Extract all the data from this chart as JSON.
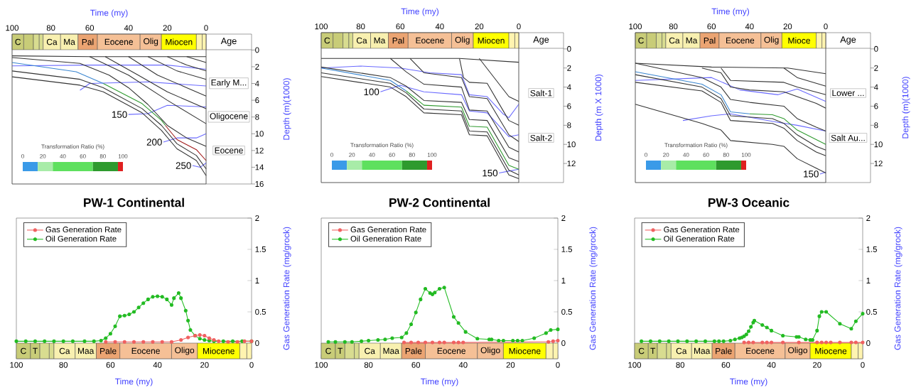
{
  "chart_data": [
    {
      "type": "line",
      "xlabel": "Time (my)",
      "ylabel": "Depth (m)(1000)",
      "xlim": [
        100,
        0
      ],
      "xticks": [
        100,
        80,
        60,
        40,
        20,
        0
      ],
      "ylim": [
        16,
        -1.9
      ],
      "yticks": [
        0,
        2,
        4,
        6,
        8,
        10,
        12,
        14,
        16
      ],
      "clabel": "Transformation Ratio (%)",
      "clim": [
        0,
        100
      ],
      "cticks": [
        0,
        20,
        40,
        60,
        80,
        100
      ],
      "bands": [
        {
          "axis": "x",
          "from": 100,
          "to": 94,
          "label": "C",
          "color": "#c8cc78"
        },
        {
          "axis": "x",
          "from": 94,
          "to": 89,
          "color": "#c8cc78"
        },
        {
          "axis": "x",
          "from": 89,
          "to": 86,
          "color": "#d8dc90"
        },
        {
          "axis": "x",
          "from": 86,
          "to": 84,
          "color": "#d8dc90"
        },
        {
          "axis": "x",
          "from": 84,
          "to": 75,
          "label": "Ca",
          "color": "#f8f0b0"
        },
        {
          "axis": "x",
          "from": 75,
          "to": 66,
          "label": "Ma",
          "color": "#f8f0b0"
        },
        {
          "axis": "x",
          "from": 66,
          "to": 56,
          "label": "Pal",
          "color": "#eba472"
        },
        {
          "axis": "x",
          "from": 56,
          "to": 34,
          "label": "Eocene",
          "color": "#f5c096"
        },
        {
          "axis": "x",
          "from": 34,
          "to": 23,
          "label": "Olig",
          "color": "#f5c096"
        },
        {
          "axis": "x",
          "from": 23,
          "to": 5,
          "label": "Miocen",
          "color": "#ffff00"
        },
        {
          "axis": "x",
          "from": 5,
          "to": 2,
          "color": "#fff4b0"
        },
        {
          "axis": "x",
          "from": 2,
          "to": 0,
          "color": "#fff4b0"
        }
      ],
      "annotations": [
        "Age",
        "Early M...",
        "Oligocene",
        "Eocene",
        {
          "text": "150",
          "x": 40,
          "y": 7.7
        },
        {
          "text": "200",
          "x": 22,
          "y": 11.0
        },
        {
          "text": "250",
          "x": 7,
          "y": 13.8
        }
      ],
      "series": [
        {
          "color": "#333333",
          "x": [
            100,
            60,
            0
          ],
          "values": [
            0.7,
            0.8,
            0.8
          ]
        },
        {
          "color": "#333333",
          "x": [
            60,
            40,
            20,
            0
          ],
          "values": [
            0.8,
            3.0,
            6.0,
            8.8
          ]
        },
        {
          "color": "#333333",
          "x": [
            52,
            35,
            20,
            0
          ],
          "values": [
            0.8,
            3.0,
            5.0,
            7.0
          ]
        },
        {
          "color": "#333333",
          "x": [
            40,
            25,
            10,
            0
          ],
          "values": [
            0.8,
            3.0,
            4.5,
            5.5
          ]
        },
        {
          "color": "#333333",
          "x": [
            30,
            15,
            0
          ],
          "values": [
            0.8,
            2.5,
            3.5
          ]
        },
        {
          "color": "#333333",
          "x": [
            20,
            10,
            0
          ],
          "values": [
            0.8,
            1.8,
            2.5
          ]
        },
        {
          "color": "#333333",
          "x": [
            10,
            0
          ],
          "values": [
            0.8,
            1.5
          ]
        },
        {
          "color": "#333333",
          "x": [
            100,
            65,
            50,
            40,
            30,
            20,
            10,
            0
          ],
          "values": [
            0.9,
            1.6,
            3.0,
            4.5,
            6.5,
            9.0,
            10.5,
            11.5
          ]
        },
        {
          "color": "#333333",
          "x": [
            100,
            65,
            53,
            33,
            23,
            15,
            5,
            0
          ],
          "values": [
            2.5,
            3.5,
            4.5,
            7.0,
            9.0,
            11.2,
            12.6,
            14.2
          ]
        },
        {
          "color": "#333333",
          "x": [
            100,
            65,
            53,
            33,
            23,
            15,
            5,
            0
          ],
          "values": [
            3.2,
            4.2,
            5.0,
            7.5,
            9.6,
            11.8,
            13.2,
            15.0
          ]
        },
        {
          "color": "#3a86d0",
          "x": [
            100,
            67,
            53
          ],
          "values": [
            1.5,
            2.6,
            4.0
          ]
        },
        {
          "color": "#2e9a2e",
          "x": [
            53,
            33,
            23,
            21
          ],
          "values": [
            4.0,
            6.4,
            8.4,
            9.0
          ]
        },
        {
          "color": "#a01818",
          "x": [
            21,
            15,
            5,
            0
          ],
          "values": [
            9.0,
            10.7,
            11.9,
            13.2
          ]
        },
        {
          "color": "#6a6aff",
          "x": [
            100,
            60,
            20,
            0
          ],
          "values": [
            1.9,
            1.8,
            1.8,
            2.3
          ]
        },
        {
          "color": "#6a6aff",
          "x": [
            65,
            60,
            30,
            0
          ],
          "values": [
            4.8,
            4.0,
            3.8,
            4.3
          ]
        },
        {
          "color": "#6a6aff",
          "x": [
            40,
            30,
            20,
            0
          ],
          "values": [
            7.7,
            7.6,
            6.6,
            6.8
          ]
        },
        {
          "color": "#6a6aff",
          "x": [
            22,
            15,
            5,
            0
          ],
          "values": [
            11.0,
            10.5,
            10.5,
            10.0
          ]
        },
        {
          "color": "#6a6aff",
          "x": [
            7,
            3,
            0
          ],
          "values": [
            13.8,
            14.0,
            13.5
          ]
        }
      ]
    },
    {
      "type": "line",
      "xlabel": "Time (my)",
      "ylabel": "Depth (m X 1000)",
      "xlim": [
        100,
        0
      ],
      "xticks": [
        100,
        80,
        60,
        40,
        20,
        0
      ],
      "ylim": [
        14,
        -1.7
      ],
      "yticks": [
        0,
        2,
        4,
        6,
        8,
        10,
        12
      ],
      "clabel": "Transformation Ratio (%)",
      "clim": [
        0,
        100
      ],
      "cticks": [
        0,
        20,
        40,
        60,
        80,
        100
      ],
      "bands": [
        {
          "axis": "x",
          "from": 100,
          "to": 94,
          "label": "C",
          "color": "#c8cc78"
        },
        {
          "axis": "x",
          "from": 94,
          "to": 89,
          "color": "#c8cc78"
        },
        {
          "axis": "x",
          "from": 89,
          "to": 86,
          "color": "#d8dc90"
        },
        {
          "axis": "x",
          "from": 86,
          "to": 84,
          "color": "#d8dc90"
        },
        {
          "axis": "x",
          "from": 84,
          "to": 75,
          "label": "Ca",
          "color": "#f8f0b0"
        },
        {
          "axis": "x",
          "from": 75,
          "to": 66,
          "label": "Ma",
          "color": "#f8f0b0"
        },
        {
          "axis": "x",
          "from": 66,
          "to": 56,
          "label": "Pal",
          "color": "#eba472"
        },
        {
          "axis": "x",
          "from": 56,
          "to": 34,
          "label": "Eocene",
          "color": "#f5c096"
        },
        {
          "axis": "x",
          "from": 34,
          "to": 23,
          "label": "Olig",
          "color": "#f5c096"
        },
        {
          "axis": "x",
          "from": 23,
          "to": 5,
          "label": "Miocen",
          "color": "#ffff00"
        },
        {
          "axis": "x",
          "from": 5,
          "to": 2,
          "color": "#fff4b0"
        },
        {
          "axis": "x",
          "from": 2,
          "to": 0,
          "color": "#fff4b0"
        }
      ],
      "annotations": [
        "Age",
        "Salt-1",
        "Salt-2",
        {
          "text": "100",
          "x": 70,
          "y": 4.5
        },
        {
          "text": "150",
          "x": 10,
          "y": 13.0
        }
      ],
      "series": [
        {
          "color": "#333333",
          "x": [
            100,
            30,
            0
          ],
          "values": [
            1.0,
            1.0,
            1.4
          ]
        },
        {
          "color": "#333333",
          "x": [
            100,
            65,
            57,
            48,
            29,
            25,
            16,
            5,
            0
          ],
          "values": [
            1.9,
            3.0,
            3.9,
            5.4,
            5.6,
            7.4,
            7.5,
            11.4,
            11.8
          ]
        },
        {
          "color": "#333333",
          "x": [
            100,
            65,
            57,
            48,
            29,
            25,
            16,
            5,
            0
          ],
          "values": [
            2.5,
            3.6,
            4.6,
            6.3,
            6.5,
            8.6,
            8.7,
            12.7,
            13.2
          ]
        },
        {
          "color": "#333333",
          "x": [
            100,
            65,
            57,
            48,
            29,
            25,
            16,
            5,
            0
          ],
          "values": [
            2.9,
            4.0,
            5.0,
            6.7,
            6.9,
            9.0,
            9.1,
            13.2,
            13.6
          ]
        },
        {
          "color": "#333333",
          "x": [
            65,
            57,
            48,
            29,
            25,
            16,
            5,
            0
          ],
          "values": [
            1.0,
            2.4,
            3.7,
            4.0,
            6.4,
            6.5,
            10.3,
            10.8
          ]
        },
        {
          "color": "#333333",
          "x": [
            55,
            48,
            29,
            25,
            16,
            5,
            0
          ],
          "values": [
            1.0,
            2.5,
            3.0,
            5.0,
            5.2,
            9.0,
            9.7
          ]
        },
        {
          "color": "#333333",
          "x": [
            30,
            28,
            25,
            16,
            5,
            0
          ],
          "values": [
            1.0,
            3.0,
            3.5,
            3.6,
            7.5,
            8.0
          ]
        },
        {
          "color": "#333333",
          "x": [
            20,
            5,
            0
          ],
          "values": [
            1.0,
            5.0,
            5.5
          ]
        },
        {
          "color": "#3a86d0",
          "x": [
            100,
            65,
            57
          ],
          "values": [
            2.0,
            3.3,
            4.4
          ]
        },
        {
          "color": "#2e9a2e",
          "x": [
            57,
            48,
            29,
            25,
            16,
            5,
            0
          ],
          "values": [
            4.4,
            5.9,
            6.1,
            8.1,
            8.2,
            12.2,
            12.6
          ]
        },
        {
          "color": "#6a6aff",
          "x": [
            100,
            80,
            60,
            45,
            29,
            25,
            16,
            8,
            5,
            0
          ],
          "values": [
            2.0,
            1.8,
            2.0,
            2.5,
            2.7,
            4.8,
            5.0,
            6.8,
            7.2,
            5.8
          ]
        },
        {
          "color": "#6a6aff",
          "x": [
            70,
            60,
            48,
            29,
            25,
            16,
            5,
            0
          ],
          "values": [
            4.5,
            3.8,
            4.5,
            4.8,
            6.5,
            6.7,
            9.2,
            9.0
          ]
        },
        {
          "color": "#6a6aff",
          "x": [
            10,
            5,
            0
          ],
          "values": [
            13.0,
            12.8,
            12.6
          ]
        }
      ]
    },
    {
      "type": "line",
      "xlabel": "Time (my)",
      "ylabel": "Depth (m)(1000)",
      "xlim": [
        100,
        0
      ],
      "xticks": [
        100,
        80,
        60,
        40,
        20,
        0
      ],
      "ylim": [
        14,
        -1.7
      ],
      "yticks": [
        0,
        2,
        4,
        6,
        8,
        10,
        12
      ],
      "clabel": "Transformation Ratio (%)",
      "clim": [
        0,
        100
      ],
      "cticks": [
        0,
        20,
        40,
        60,
        80,
        100
      ],
      "bands": [
        {
          "axis": "x",
          "from": 100,
          "to": 94,
          "label": "C",
          "color": "#c8cc78"
        },
        {
          "axis": "x",
          "from": 94,
          "to": 89,
          "color": "#c8cc78"
        },
        {
          "axis": "x",
          "from": 89,
          "to": 86,
          "color": "#d8dc90"
        },
        {
          "axis": "x",
          "from": 86,
          "to": 84,
          "color": "#d8dc90"
        },
        {
          "axis": "x",
          "from": 84,
          "to": 75,
          "label": "Ca",
          "color": "#f8f0b0"
        },
        {
          "axis": "x",
          "from": 75,
          "to": 66,
          "label": "Ma",
          "color": "#f8f0b0"
        },
        {
          "axis": "x",
          "from": 66,
          "to": 56,
          "label": "Pal",
          "color": "#eba472"
        },
        {
          "axis": "x",
          "from": 56,
          "to": 34,
          "label": "Eocene",
          "color": "#f5c096"
        },
        {
          "axis": "x",
          "from": 34,
          "to": 23,
          "label": "Olig",
          "color": "#f5c096"
        },
        {
          "axis": "x",
          "from": 23,
          "to": 5,
          "label": "Mioce",
          "color": "#ffff00"
        },
        {
          "axis": "x",
          "from": 5,
          "to": 2,
          "color": "#fff4b0"
        },
        {
          "axis": "x",
          "from": 2,
          "to": 0,
          "color": "#fff4b0"
        }
      ],
      "annotations": [
        "Age",
        "Lower ...",
        "Salt Au...",
        {
          "text": "150",
          "x": 3,
          "y": 13.1
        }
      ],
      "series": [
        {
          "color": "#333333",
          "x": [
            100,
            60,
            20,
            0
          ],
          "values": [
            1.5,
            1.9,
            2.0,
            2.6
          ]
        },
        {
          "color": "#333333",
          "x": [
            100,
            65,
            55,
            50,
            40,
            22,
            15,
            5,
            0
          ],
          "values": [
            1.5,
            3.0,
            4.0,
            5.3,
            5.6,
            6.0,
            7.3,
            8.2,
            8.6
          ]
        },
        {
          "color": "#333333",
          "x": [
            100,
            65,
            55,
            50,
            28,
            22,
            15,
            5,
            0
          ],
          "values": [
            2.7,
            4.0,
            5.2,
            7.0,
            7.3,
            7.8,
            9.0,
            10.2,
            10.6
          ]
        },
        {
          "color": "#333333",
          "x": [
            100,
            65,
            55,
            50,
            28,
            22,
            15,
            5,
            0
          ],
          "values": [
            3.5,
            4.4,
            5.6,
            7.5,
            7.8,
            8.3,
            9.6,
            10.8,
            11.2
          ]
        },
        {
          "color": "#333333",
          "x": [
            100,
            65,
            55,
            50,
            28,
            22,
            15,
            5,
            0
          ],
          "values": [
            5.8,
            7.8,
            8.5,
            9.6,
            10.0,
            10.2,
            11.5,
            12.5,
            13.0
          ]
        },
        {
          "color": "#333333",
          "x": [
            65,
            55,
            50,
            40,
            22,
            15,
            5,
            0
          ],
          "values": [
            2.0,
            2.5,
            4.0,
            4.3,
            4.5,
            5.0,
            5.7,
            6.2
          ]
        },
        {
          "color": "#333333",
          "x": [
            55,
            50,
            22,
            15,
            0
          ],
          "values": [
            2.0,
            3.3,
            3.5,
            4.0,
            4.8
          ]
        },
        {
          "color": "#333333",
          "x": [
            22,
            15,
            0
          ],
          "values": [
            2.0,
            3.0,
            3.9
          ]
        },
        {
          "color": "#3a86d0",
          "x": [
            100,
            65,
            55,
            50,
            40
          ],
          "values": [
            2.4,
            3.7,
            4.8,
            6.6,
            6.8
          ]
        },
        {
          "color": "#2e9a2e",
          "x": [
            40,
            28,
            22,
            15,
            5,
            0
          ],
          "values": [
            6.8,
            6.9,
            7.3,
            8.5,
            9.5,
            10.0
          ]
        },
        {
          "color": "#6a6aff",
          "x": [
            100,
            60,
            45,
            25,
            15,
            0
          ],
          "values": [
            3.3,
            3.0,
            4.3,
            4.8,
            4.2,
            5.5
          ]
        },
        {
          "color": "#6a6aff",
          "x": [
            75,
            60,
            50,
            25,
            15,
            0
          ],
          "values": [
            7.5,
            7.0,
            6.8,
            7.7,
            8.0,
            8.6
          ]
        },
        {
          "color": "#6a6aff",
          "x": [
            3,
            0
          ],
          "values": [
            13.1,
            12.9
          ]
        }
      ]
    },
    {
      "type": "line",
      "title": "PW-1 Continental",
      "xlabel": "Time (my)",
      "ylabel": "Gas Generation Rate (mg/grock)",
      "xlim": [
        100,
        0
      ],
      "xticks": [
        100,
        80,
        60,
        40,
        20,
        0
      ],
      "ylim": [
        -0.25,
        2
      ],
      "yticks": [
        0,
        0.5,
        1,
        1.5,
        2
      ],
      "legend": "top left",
      "marker": "circle",
      "bands": [
        {
          "axis": "x",
          "from": 100,
          "to": 94,
          "label": "C",
          "color": "#c8cc78"
        },
        {
          "axis": "x",
          "from": 94,
          "to": 90,
          "label": "T",
          "color": "#c8cc78"
        },
        {
          "axis": "x",
          "from": 90,
          "to": 86,
          "color": "#d8dc90"
        },
        {
          "axis": "x",
          "from": 86,
          "to": 84,
          "color": "#d8dc90"
        },
        {
          "axis": "x",
          "from": 84,
          "to": 75,
          "label": "Ca",
          "color": "#f8f0b0"
        },
        {
          "axis": "x",
          "from": 75,
          "to": 66,
          "label": "Maa",
          "color": "#f8f0b0"
        },
        {
          "axis": "x",
          "from": 66,
          "to": 56,
          "label": "Pale",
          "color": "#eba472"
        },
        {
          "axis": "x",
          "from": 56,
          "to": 34,
          "label": "Eocene",
          "color": "#f5c096"
        },
        {
          "axis": "x",
          "from": 34,
          "to": 23,
          "label": "Oligo",
          "color": "#f5c096"
        },
        {
          "axis": "x",
          "from": 23,
          "to": 5,
          "label": "Miocene",
          "color": "#ffff00"
        },
        {
          "axis": "x",
          "from": 5,
          "to": 2,
          "color": "#fff4b0"
        },
        {
          "axis": "x",
          "from": 2,
          "to": 0,
          "color": "#fff4b0"
        }
      ],
      "series": [
        {
          "name": "Gas Generation Rate",
          "color": "#f06060",
          "x": [
            62,
            58,
            54,
            50,
            46,
            42,
            38,
            34,
            30,
            27,
            24,
            22,
            20,
            18,
            16,
            14,
            10,
            6,
            3,
            0
          ],
          "values": [
            0.02,
            0.02,
            0.02,
            0.02,
            0.02,
            0.02,
            0.02,
            0.02,
            0.05,
            0.09,
            0.12,
            0.13,
            0.12,
            0.08,
            0.05,
            0.03,
            0.02,
            0.02,
            0.03,
            0.03
          ]
        },
        {
          "name": "Oil Generation Rate",
          "color": "#22bb22",
          "x": [
            100,
            96,
            92,
            88,
            84,
            80,
            76,
            71,
            67,
            64,
            62,
            60,
            58,
            56,
            54,
            52,
            50,
            48,
            46,
            44,
            42,
            40,
            38,
            36,
            34,
            33,
            31,
            30,
            28,
            27,
            26,
            24,
            22,
            20,
            18,
            16,
            12,
            8,
            4,
            0
          ],
          "values": [
            0.03,
            0.03,
            0.03,
            0.03,
            0.03,
            0.03,
            0.03,
            0.03,
            0.03,
            0.04,
            0.08,
            0.15,
            0.27,
            0.43,
            0.44,
            0.46,
            0.5,
            0.57,
            0.64,
            0.7,
            0.74,
            0.75,
            0.74,
            0.7,
            0.61,
            0.72,
            0.8,
            0.72,
            0.52,
            0.36,
            0.21,
            0.12,
            0.07,
            0.05,
            0.04,
            0.03,
            0.03,
            0.03,
            0.03,
            0.03
          ]
        }
      ]
    },
    {
      "type": "line",
      "title": "PW-2 Continental",
      "xlabel": "Time (my)",
      "ylabel": "Gas Generation Rate (mg/grock)",
      "xlim": [
        100,
        0
      ],
      "xticks": [
        100,
        80,
        60,
        40,
        20,
        0
      ],
      "ylim": [
        -0.25,
        2
      ],
      "yticks": [
        0,
        0.5,
        1,
        1.5,
        2
      ],
      "legend": "top left",
      "marker": "circle",
      "bands": [
        {
          "axis": "x",
          "from": 100,
          "to": 94,
          "label": "C",
          "color": "#c8cc78"
        },
        {
          "axis": "x",
          "from": 94,
          "to": 90,
          "label": "T",
          "color": "#c8cc78"
        },
        {
          "axis": "x",
          "from": 90,
          "to": 86,
          "color": "#d8dc90"
        },
        {
          "axis": "x",
          "from": 86,
          "to": 84,
          "color": "#d8dc90"
        },
        {
          "axis": "x",
          "from": 84,
          "to": 75,
          "label": "Ca",
          "color": "#f8f0b0"
        },
        {
          "axis": "x",
          "from": 75,
          "to": 66,
          "label": "Maa",
          "color": "#f8f0b0"
        },
        {
          "axis": "x",
          "from": 66,
          "to": 56,
          "label": "Pale",
          "color": "#eba472"
        },
        {
          "axis": "x",
          "from": 56,
          "to": 34,
          "label": "Eocene",
          "color": "#f5c096"
        },
        {
          "axis": "x",
          "from": 34,
          "to": 23,
          "label": "Oligo",
          "color": "#f5c096"
        },
        {
          "axis": "x",
          "from": 23,
          "to": 5,
          "label": "Miocene",
          "color": "#ffff00"
        },
        {
          "axis": "x",
          "from": 5,
          "to": 2,
          "color": "#fff4b0"
        },
        {
          "axis": "x",
          "from": 2,
          "to": 0,
          "color": "#fff4b0"
        }
      ],
      "series": [
        {
          "name": "Gas Generation Rate",
          "color": "#f06060",
          "x": [
            65,
            62,
            59,
            56,
            53,
            50,
            48,
            44,
            42,
            40,
            4,
            2,
            0
          ],
          "values": [
            0.01,
            0.01,
            0.01,
            0.01,
            0.01,
            0.01,
            0.01,
            0.01,
            0.01,
            0.01,
            0.02,
            0.03,
            0.04
          ]
        },
        {
          "name": "Oil Generation Rate",
          "color": "#22bb22",
          "x": [
            97,
            94,
            90,
            87,
            83,
            80,
            76,
            73,
            70,
            66,
            64,
            62,
            60,
            58,
            56,
            54,
            53,
            52,
            50,
            48,
            44,
            42,
            39,
            34,
            29,
            28,
            25,
            23,
            19,
            17,
            15,
            10,
            5,
            3,
            0
          ],
          "values": [
            0.02,
            0.02,
            0.02,
            0.02,
            0.03,
            0.04,
            0.05,
            0.06,
            0.08,
            0.09,
            0.16,
            0.3,
            0.49,
            0.7,
            0.87,
            0.8,
            0.78,
            0.81,
            0.87,
            0.89,
            0.42,
            0.32,
            0.18,
            0.07,
            0.06,
            0.06,
            0.04,
            0.04,
            0.04,
            0.04,
            0.04,
            0.08,
            0.16,
            0.21,
            0.22
          ]
        }
      ]
    },
    {
      "type": "line",
      "title": "PW-3 Oceanic",
      "xlabel": "Time (my)",
      "ylabel": "Gas Generation Rate (mg/grock)",
      "xlim": [
        100,
        0
      ],
      "xticks": [
        100,
        80,
        60,
        40,
        20,
        0
      ],
      "ylim": [
        -0.25,
        2
      ],
      "yticks": [
        0,
        0.5,
        1,
        1.5,
        2
      ],
      "legend": "top left",
      "marker": "circle",
      "bands": [
        {
          "axis": "x",
          "from": 100,
          "to": 94,
          "label": "C",
          "color": "#c8cc78"
        },
        {
          "axis": "x",
          "from": 94,
          "to": 90,
          "label": "T",
          "color": "#c8cc78"
        },
        {
          "axis": "x",
          "from": 90,
          "to": 86,
          "color": "#d8dc90"
        },
        {
          "axis": "x",
          "from": 86,
          "to": 84,
          "color": "#d8dc90"
        },
        {
          "axis": "x",
          "from": 84,
          "to": 75,
          "label": "Ca",
          "color": "#f8f0b0"
        },
        {
          "axis": "x",
          "from": 75,
          "to": 66,
          "label": "Maa",
          "color": "#f8f0b0"
        },
        {
          "axis": "x",
          "from": 66,
          "to": 56,
          "label": "Pale",
          "color": "#eba472"
        },
        {
          "axis": "x",
          "from": 56,
          "to": 34,
          "label": "Eocene",
          "color": "#f5c096"
        },
        {
          "axis": "x",
          "from": 34,
          "to": 23,
          "label": "Oligo",
          "color": "#f5c096"
        },
        {
          "axis": "x",
          "from": 23,
          "to": 5,
          "label": "Miocene",
          "color": "#ffff00"
        },
        {
          "axis": "x",
          "from": 5,
          "to": 2,
          "color": "#fff4b0"
        },
        {
          "axis": "x",
          "from": 2,
          "to": 0,
          "color": "#fff4b0"
        }
      ],
      "series": [
        {
          "name": "Gas Generation Rate",
          "color": "#f06060",
          "x": [
            52,
            50,
            48,
            44,
            42,
            40,
            35,
            28,
            20,
            18,
            16,
            14,
            10,
            5,
            3,
            0
          ],
          "values": [
            0.01,
            0.01,
            0.01,
            0.01,
            0.01,
            0.01,
            0.01,
            0.01,
            0.01,
            0.01,
            0.01,
            0.01,
            0.01,
            0.01,
            0.01,
            0.01
          ]
        },
        {
          "name": "Oil Generation Rate",
          "color": "#22bb22",
          "x": [
            97,
            93,
            89,
            85,
            81,
            77,
            73,
            69,
            65,
            63,
            61,
            58,
            56,
            54,
            53,
            52,
            51,
            50,
            49,
            48,
            47.5,
            44,
            42,
            40,
            35,
            29,
            28,
            25,
            23,
            22,
            20,
            19,
            18,
            16,
            10,
            5,
            3,
            0
          ],
          "values": [
            0.03,
            0.03,
            0.03,
            0.03,
            0.03,
            0.03,
            0.03,
            0.03,
            0.03,
            0.03,
            0.03,
            0.04,
            0.06,
            0.08,
            0.09,
            0.11,
            0.14,
            0.19,
            0.26,
            0.33,
            0.36,
            0.29,
            0.25,
            0.2,
            0.12,
            0.1,
            0.1,
            0.06,
            0.05,
            0.05,
            0.2,
            0.43,
            0.5,
            0.5,
            0.31,
            0.23,
            0.35,
            0.47
          ]
        }
      ]
    }
  ]
}
